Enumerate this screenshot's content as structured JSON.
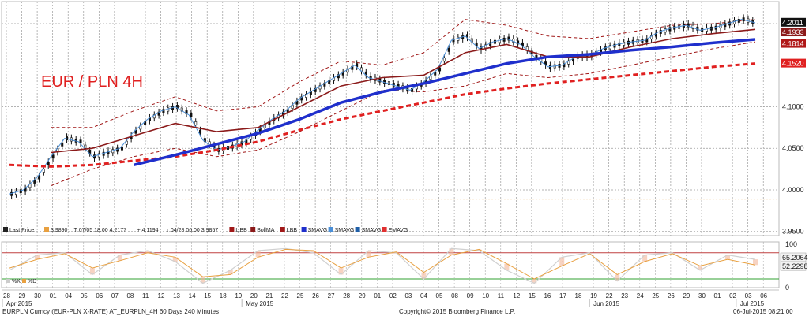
{
  "chart_data": {
    "type": "line",
    "title": "EUR / PLN 4H",
    "price_axis": {
      "ylim": [
        3.945,
        4.2265
      ],
      "ticks": [
        "4.2000",
        "4.1500",
        "4.1000",
        "4.0500",
        "4.0000",
        "3.9500"
      ]
    },
    "price_tags": [
      {
        "label": "4.2011",
        "value": 4.2011,
        "color": "#111111"
      },
      {
        "label": "4.1933",
        "value": 4.1933,
        "color": "#8b1a1a"
      },
      {
        "label": "4.1814",
        "value": 4.1814,
        "color": "#b01818"
      },
      {
        "label": "4.1520",
        "value": 4.152,
        "color": "#e02020"
      }
    ],
    "legend": {
      "last_price": "Last Price",
      "v1": "3.9890",
      "high": "07/05 18:00 4.2177",
      "close": "4.1194",
      "low": "04/28 06:00 3.9857",
      "items": [
        "UBB",
        "BollMA",
        "LBB",
        "SMAVG",
        "SMAVG",
        "SMAVG",
        "EMAVG"
      ],
      "item_colors": [
        "#a01818",
        "#8b1a1a",
        "#a01818",
        "#1f2fcc",
        "#4a8fd8",
        "#1f5fa8",
        "#e03030"
      ]
    },
    "oscillator": {
      "ylim": [
        0,
        105
      ],
      "ticks": [
        "100",
        "50",
        "0"
      ],
      "tag_values": [
        {
          "label": "65.2064",
          "value": 65.2064
        },
        {
          "label": "52.2298",
          "value": 52.2298
        }
      ],
      "legend": [
        "%K",
        "%D"
      ],
      "levels": [
        80,
        20
      ]
    },
    "x_axis": {
      "days": [
        "28",
        "29",
        "30",
        "01",
        "04",
        "05",
        "06",
        "07",
        "08",
        "11",
        "12",
        "13",
        "14",
        "15",
        "18",
        "19",
        "20",
        "21",
        "22",
        "25",
        "26",
        "27",
        "28",
        "29",
        "01",
        "02",
        "03",
        "04",
        "05",
        "08",
        "09",
        "10",
        "11",
        "12",
        "15",
        "16",
        "17",
        "18",
        "19",
        "22",
        "23",
        "24",
        "25",
        "26",
        "29",
        "30",
        "01",
        "02",
        "03",
        "06"
      ],
      "months": [
        {
          "label": "Apr 2015",
          "index": 0
        },
        {
          "label": "May 2015",
          "index": 15.5
        },
        {
          "label": "Jun 2015",
          "index": 38
        },
        {
          "label": "Jul 2015",
          "index": 47.5
        }
      ]
    },
    "series_points": {
      "price": [
        [
          0,
          3.995
        ],
        [
          1,
          4.0
        ],
        [
          2,
          4.015
        ],
        [
          3,
          4.04
        ],
        [
          4,
          4.062
        ],
        [
          5,
          4.058
        ],
        [
          6,
          4.04
        ],
        [
          7,
          4.045
        ],
        [
          8,
          4.05
        ],
        [
          9,
          4.07
        ],
        [
          10,
          4.085
        ],
        [
          11,
          4.095
        ],
        [
          12,
          4.1
        ],
        [
          13,
          4.09
        ],
        [
          14,
          4.06
        ],
        [
          15,
          4.048
        ],
        [
          16,
          4.052
        ],
        [
          17,
          4.058
        ],
        [
          18,
          4.072
        ],
        [
          19,
          4.085
        ],
        [
          20,
          4.095
        ],
        [
          21,
          4.11
        ],
        [
          22,
          4.12
        ],
        [
          23,
          4.13
        ],
        [
          24,
          4.14
        ],
        [
          25,
          4.15
        ],
        [
          26,
          4.135
        ],
        [
          27,
          4.13
        ],
        [
          28,
          4.125
        ],
        [
          29,
          4.12
        ],
        [
          30,
          4.13
        ],
        [
          31,
          4.145
        ],
        [
          32,
          4.18
        ],
        [
          33,
          4.185
        ],
        [
          34,
          4.17
        ],
        [
          35,
          4.178
        ],
        [
          36,
          4.182
        ],
        [
          37,
          4.175
        ],
        [
          38,
          4.16
        ],
        [
          39,
          4.148
        ],
        [
          40,
          4.15
        ],
        [
          41,
          4.16
        ],
        [
          42,
          4.162
        ],
        [
          43,
          4.17
        ],
        [
          44,
          4.175
        ],
        [
          45,
          4.178
        ],
        [
          46,
          4.18
        ],
        [
          47,
          4.19
        ],
        [
          48,
          4.195
        ],
        [
          49,
          4.198
        ],
        [
          50,
          4.192
        ],
        [
          51,
          4.195
        ],
        [
          52,
          4.2
        ],
        [
          53,
          4.205
        ],
        [
          54,
          4.201
        ]
      ],
      "bollinger_ma": [
        [
          3,
          4.045
        ],
        [
          6,
          4.05
        ],
        [
          9,
          4.065
        ],
        [
          12,
          4.08
        ],
        [
          15,
          4.07
        ],
        [
          18,
          4.075
        ],
        [
          21,
          4.1
        ],
        [
          24,
          4.125
        ],
        [
          27,
          4.135
        ],
        [
          30,
          4.138
        ],
        [
          33,
          4.165
        ],
        [
          36,
          4.175
        ],
        [
          39,
          4.16
        ],
        [
          42,
          4.16
        ],
        [
          45,
          4.172
        ],
        [
          48,
          4.182
        ],
        [
          51,
          4.188
        ],
        [
          54,
          4.193
        ]
      ],
      "upper_band": [
        [
          3,
          4.075
        ],
        [
          6,
          4.075
        ],
        [
          9,
          4.095
        ],
        [
          12,
          4.112
        ],
        [
          15,
          4.095
        ],
        [
          18,
          4.1
        ],
        [
          21,
          4.13
        ],
        [
          24,
          4.155
        ],
        [
          27,
          4.15
        ],
        [
          30,
          4.165
        ],
        [
          33,
          4.205
        ],
        [
          36,
          4.198
        ],
        [
          39,
          4.185
        ],
        [
          42,
          4.182
        ],
        [
          45,
          4.19
        ],
        [
          48,
          4.198
        ],
        [
          51,
          4.2
        ],
        [
          54,
          4.205
        ]
      ],
      "lower_band": [
        [
          3,
          4.005
        ],
        [
          6,
          4.025
        ],
        [
          9,
          4.04
        ],
        [
          12,
          4.05
        ],
        [
          15,
          4.04
        ],
        [
          18,
          4.048
        ],
        [
          21,
          4.07
        ],
        [
          24,
          4.095
        ],
        [
          27,
          4.12
        ],
        [
          30,
          4.118
        ],
        [
          33,
          4.125
        ],
        [
          36,
          4.14
        ],
        [
          39,
          4.135
        ],
        [
          42,
          4.14
        ],
        [
          45,
          4.15
        ],
        [
          48,
          4.16
        ],
        [
          51,
          4.17
        ],
        [
          54,
          4.178
        ]
      ],
      "sma_blue": [
        [
          9,
          4.03
        ],
        [
          12,
          4.042
        ],
        [
          15,
          4.055
        ],
        [
          18,
          4.068
        ],
        [
          21,
          4.085
        ],
        [
          24,
          4.105
        ],
        [
          27,
          4.118
        ],
        [
          30,
          4.128
        ],
        [
          33,
          4.14
        ],
        [
          36,
          4.152
        ],
        [
          39,
          4.16
        ],
        [
          42,
          4.163
        ],
        [
          45,
          4.168
        ],
        [
          48,
          4.172
        ],
        [
          51,
          4.177
        ],
        [
          54,
          4.181
        ]
      ],
      "ema_red": [
        [
          0,
          4.03
        ],
        [
          3,
          4.028
        ],
        [
          6,
          4.03
        ],
        [
          9,
          4.035
        ],
        [
          12,
          4.04
        ],
        [
          15,
          4.048
        ],
        [
          18,
          4.058
        ],
        [
          21,
          4.072
        ],
        [
          24,
          4.085
        ],
        [
          27,
          4.095
        ],
        [
          30,
          4.105
        ],
        [
          33,
          4.115
        ],
        [
          36,
          4.122
        ],
        [
          39,
          4.128
        ],
        [
          42,
          4.133
        ],
        [
          45,
          4.138
        ],
        [
          48,
          4.143
        ],
        [
          51,
          4.148
        ],
        [
          54,
          4.152
        ]
      ]
    },
    "oscillator_points": {
      "k": [
        [
          0,
          40
        ],
        [
          2,
          75
        ],
        [
          4,
          80
        ],
        [
          6,
          30
        ],
        [
          8,
          75
        ],
        [
          10,
          85
        ],
        [
          12,
          60
        ],
        [
          14,
          10
        ],
        [
          16,
          40
        ],
        [
          18,
          85
        ],
        [
          20,
          90
        ],
        [
          22,
          80
        ],
        [
          24,
          30
        ],
        [
          26,
          85
        ],
        [
          28,
          80
        ],
        [
          30,
          20
        ],
        [
          32,
          90
        ],
        [
          34,
          85
        ],
        [
          36,
          40
        ],
        [
          38,
          10
        ],
        [
          40,
          70
        ],
        [
          42,
          80
        ],
        [
          44,
          15
        ],
        [
          46,
          75
        ],
        [
          48,
          80
        ],
        [
          50,
          40
        ],
        [
          52,
          75
        ],
        [
          54,
          65
        ]
      ],
      "d": [
        [
          0,
          45
        ],
        [
          2,
          65
        ],
        [
          4,
          78
        ],
        [
          6,
          45
        ],
        [
          8,
          62
        ],
        [
          10,
          80
        ],
        [
          12,
          70
        ],
        [
          14,
          25
        ],
        [
          16,
          30
        ],
        [
          18,
          70
        ],
        [
          20,
          88
        ],
        [
          22,
          85
        ],
        [
          24,
          45
        ],
        [
          26,
          70
        ],
        [
          28,
          82
        ],
        [
          30,
          35
        ],
        [
          32,
          75
        ],
        [
          34,
          88
        ],
        [
          36,
          55
        ],
        [
          38,
          20
        ],
        [
          40,
          50
        ],
        [
          42,
          78
        ],
        [
          44,
          30
        ],
        [
          46,
          60
        ],
        [
          48,
          78
        ],
        [
          50,
          50
        ],
        [
          52,
          65
        ],
        [
          54,
          52
        ]
      ]
    }
  },
  "footer": {
    "left": "EURPLN Curncy (EUR-PLN X-RATE) AT_EURPLN_4H 60 Days 240 Minutes",
    "center": "Copyright© 2015 Bloomberg Finance L.P.",
    "right": "06-Jul-2015 08:21:00"
  }
}
